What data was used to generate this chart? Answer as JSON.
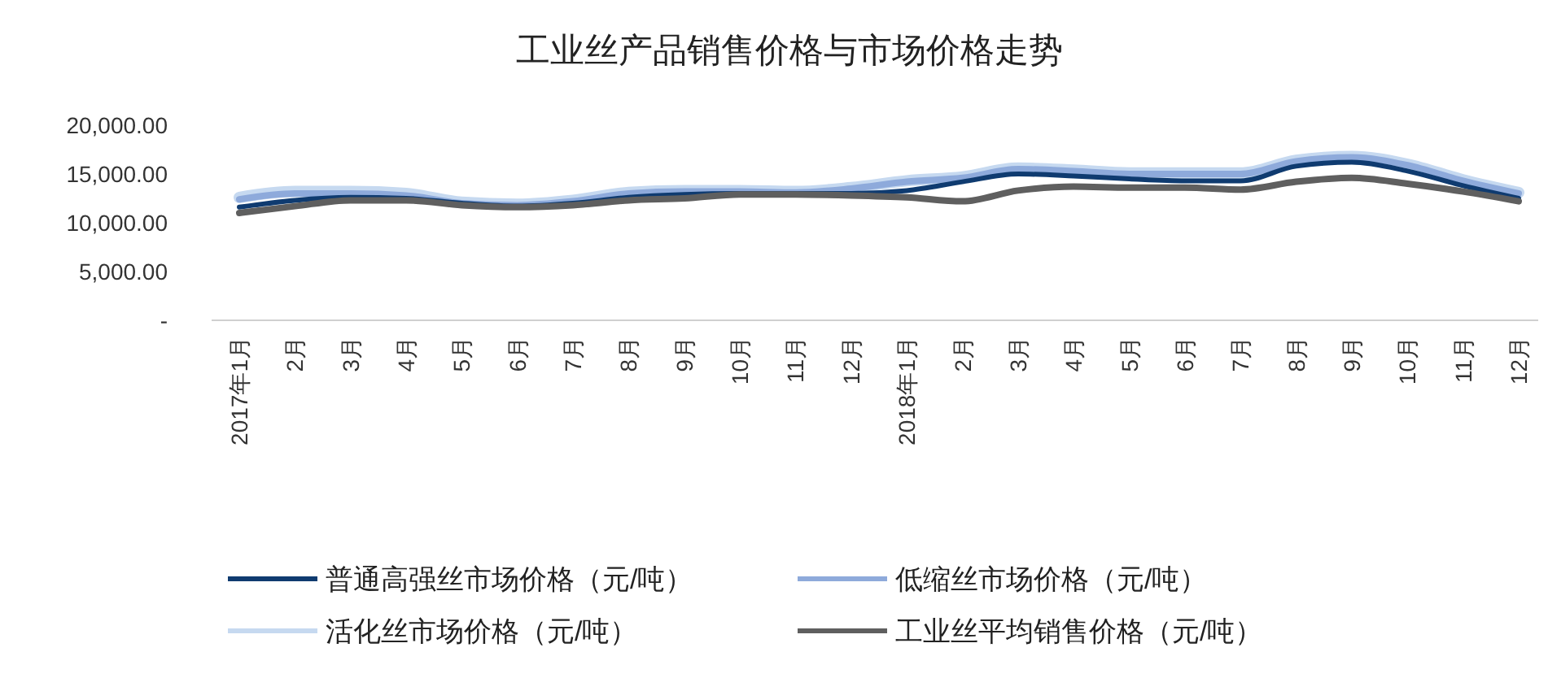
{
  "chart_data": {
    "type": "line",
    "title": "工业丝产品销售价格与市场价格走势",
    "categories": [
      "2017年1月",
      "2月",
      "3月",
      "4月",
      "5月",
      "6月",
      "7月",
      "8月",
      "9月",
      "10月",
      "11月",
      "12月",
      "2018年1月",
      "2月",
      "3月",
      "4月",
      "5月",
      "6月",
      "7月",
      "8月",
      "9月",
      "10月",
      "11月",
      "12月"
    ],
    "series": [
      {
        "name": "普通高强丝市场价格（元/吨）",
        "color": "#0f3b70",
        "values": [
          11600,
          12300,
          12600,
          12500,
          12000,
          11700,
          12000,
          12600,
          12900,
          13000,
          13000,
          13000,
          13300,
          14200,
          15000,
          14800,
          14500,
          14300,
          14300,
          15800,
          16200,
          15300,
          13800,
          12500
        ]
      },
      {
        "name": "低缩丝市场价格（元/吨）",
        "color": "#8eaadb",
        "values": [
          12400,
          13000,
          13000,
          12800,
          12000,
          11800,
          12200,
          13000,
          13200,
          13200,
          13100,
          13500,
          14200,
          14600,
          15500,
          15300,
          15000,
          15000,
          15000,
          16300,
          16700,
          15900,
          14300,
          13000
        ]
      },
      {
        "name": "活化丝市场价格（元/吨）",
        "color": "#c6d9f0",
        "values": [
          12600,
          13200,
          13200,
          13000,
          12100,
          11900,
          12300,
          13100,
          13300,
          13300,
          13200,
          13600,
          14300,
          14700,
          15600,
          15400,
          15100,
          15100,
          15100,
          16400,
          16800,
          16000,
          14400,
          13100
        ]
      },
      {
        "name": "工业丝平均销售价格（元/吨）",
        "color": "#5f5f5f",
        "values": [
          11000,
          11700,
          12300,
          12300,
          11800,
          11600,
          11800,
          12300,
          12500,
          12900,
          12900,
          12800,
          12600,
          12200,
          13300,
          13700,
          13600,
          13600,
          13400,
          14200,
          14600,
          14000,
          13200,
          12200
        ]
      }
    ],
    "ylim": [
      0,
      20000
    ],
    "yticks": [
      {
        "value": 0,
        "label": "-"
      },
      {
        "value": 5000,
        "label": "5,000.00"
      },
      {
        "value": 10000,
        "label": "10,000.00"
      },
      {
        "value": 15000,
        "label": "15,000.00"
      },
      {
        "value": 20000,
        "label": "20,000.00"
      }
    ],
    "grid": false,
    "legend": "bottom",
    "marker": "none",
    "line_style": "solid"
  }
}
